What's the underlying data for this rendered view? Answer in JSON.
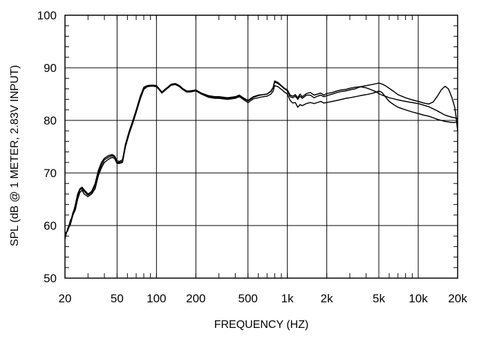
{
  "chart_data": {
    "type": "line",
    "title": "",
    "xlabel": "FREQUENCY  (HZ)",
    "ylabel": "SPL (dB @ 1 METER, 2.83V INPUT)",
    "x_scale": "log",
    "xlim": [
      20,
      20000
    ],
    "ylim": [
      50,
      100
    ],
    "grid": true,
    "legend": "none",
    "line_color": "#000000",
    "x_ticks": [
      {
        "value": 20,
        "label": "20"
      },
      {
        "value": 50,
        "label": "50"
      },
      {
        "value": 100,
        "label": "100"
      },
      {
        "value": 200,
        "label": "200"
      },
      {
        "value": 500,
        "label": "500"
      },
      {
        "value": 1000,
        "label": "1k"
      },
      {
        "value": 2000,
        "label": "2k"
      },
      {
        "value": 5000,
        "label": "5k"
      },
      {
        "value": 10000,
        "label": "10k"
      },
      {
        "value": 20000,
        "label": "20k"
      }
    ],
    "y_ticks": [
      {
        "value": 50,
        "label": "50"
      },
      {
        "value": 60,
        "label": "60"
      },
      {
        "value": 70,
        "label": "70"
      },
      {
        "value": 80,
        "label": "80"
      },
      {
        "value": 90,
        "label": "90"
      },
      {
        "value": 100,
        "label": "100"
      }
    ],
    "series": [
      {
        "x": [
          20,
          21,
          22,
          23,
          24,
          25,
          26,
          27,
          28,
          30,
          32,
          34,
          36,
          38,
          40,
          43,
          46,
          48,
          50,
          52,
          55,
          58,
          62,
          66,
          70,
          75,
          80,
          85,
          90,
          95,
          100,
          105,
          110,
          120,
          130,
          140,
          150,
          160,
          170,
          180,
          190,
          200,
          220,
          250,
          280,
          300,
          350,
          400,
          430,
          460,
          500,
          550,
          600,
          650,
          700,
          750,
          780,
          800,
          850,
          900,
          950,
          1000,
          1050,
          1100,
          1150,
          1200,
          1250,
          1300,
          1400,
          1500,
          1600,
          1700,
          1800,
          1900,
          2000,
          2200,
          2400,
          2600,
          2800,
          3000,
          3300,
          3600,
          4000,
          4400,
          4800,
          5000,
          5300,
          5600,
          6000,
          6500,
          7000,
          8000,
          9000,
          10000,
          11000,
          12000,
          13000,
          14000,
          15000,
          16000,
          17000,
          18000,
          19000,
          19500,
          20000
        ],
        "y": [
          58.5,
          59,
          61,
          62,
          64,
          66,
          67,
          67.3,
          66.8,
          66,
          66.5,
          68,
          70.5,
          72,
          72.8,
          73.3,
          73.5,
          73.2,
          72.3,
          72.2,
          72.5,
          75.5,
          78,
          80,
          82,
          84.5,
          86.3,
          86.6,
          86.7,
          86.7,
          86.6,
          86,
          85.4,
          86.2,
          86.9,
          87,
          86.6,
          86,
          85.6,
          85.6,
          85.7,
          85.8,
          85.2,
          84.7,
          84.5,
          84.5,
          84.3,
          84.5,
          84.8,
          84.3,
          83.8,
          84.5,
          84.8,
          84.9,
          85,
          85.6,
          86.3,
          87.5,
          87.2,
          86.6,
          86.1,
          85.8,
          84.8,
          84.6,
          84.9,
          84.3,
          85,
          84.5,
          85.1,
          85.3,
          84.8,
          85,
          85.2,
          84.8,
          85.1,
          85.3,
          85.6,
          85.8,
          85.9,
          86.1,
          86.3,
          86.4,
          86.2,
          85.8,
          85.4,
          85.1,
          84.8,
          84.6,
          84.3,
          84.1,
          83.9,
          83.6,
          83.4,
          83.2,
          82.9,
          82.6,
          82.2,
          81.8,
          81.4,
          81,
          80.8,
          80.6,
          80.5,
          80.4,
          80.3
        ]
      },
      {
        "x": [
          20,
          21,
          22,
          23,
          24,
          25,
          26,
          27,
          28,
          30,
          32,
          34,
          36,
          38,
          40,
          43,
          46,
          48,
          50,
          52,
          55,
          58,
          62,
          66,
          70,
          75,
          80,
          85,
          90,
          95,
          100,
          105,
          110,
          120,
          130,
          140,
          150,
          160,
          170,
          180,
          190,
          200,
          220,
          250,
          280,
          300,
          350,
          400,
          430,
          460,
          500,
          550,
          600,
          650,
          700,
          750,
          780,
          800,
          850,
          900,
          950,
          1000,
          1050,
          1100,
          1150,
          1200,
          1250,
          1300,
          1400,
          1500,
          1600,
          1700,
          1800,
          1900,
          2000,
          2200,
          2400,
          2600,
          2800,
          3000,
          3300,
          3600,
          4000,
          4400,
          4800,
          5000,
          5300,
          5600,
          6000,
          6500,
          7000,
          8000,
          9000,
          10000,
          11000,
          12000,
          13000,
          14000,
          15000,
          16000,
          17000,
          18000,
          19000,
          19500,
          20000
        ],
        "y": [
          57.5,
          59.5,
          60.5,
          62.5,
          63.5,
          65.5,
          66.8,
          67,
          66.5,
          65.8,
          66.3,
          67.5,
          70,
          71.5,
          72.5,
          73,
          73.3,
          73,
          72,
          72,
          72.2,
          75.3,
          77.8,
          79.8,
          81.8,
          84.3,
          86.1,
          86.5,
          86.6,
          86.6,
          86.5,
          85.9,
          85.3,
          86.1,
          86.8,
          86.9,
          86.5,
          85.9,
          85.5,
          85.5,
          85.6,
          85.7,
          85.1,
          84.6,
          84.4,
          84.4,
          84.2,
          84.4,
          84.7,
          84.2,
          83.7,
          84.4,
          84.7,
          84.9,
          85,
          85.5,
          86.2,
          87.3,
          87,
          86.5,
          86,
          85.6,
          84.5,
          84.3,
          84.6,
          84,
          84.6,
          84.2,
          84.8,
          84.8,
          84.3,
          84.6,
          84.8,
          84.5,
          84.7,
          85,
          85.3,
          85.5,
          85.6,
          85.8,
          86,
          86.4,
          86.6,
          86.8,
          87,
          87.1,
          86.9,
          86.6,
          86.1,
          85.5,
          84.9,
          84.3,
          83.9,
          83.6,
          83.3,
          83.1,
          83.5,
          84.6,
          85.8,
          86.5,
          86,
          84.5,
          82.5,
          80.5,
          78
        ]
      },
      {
        "x": [
          20,
          21,
          22,
          23,
          24,
          25,
          26,
          27,
          28,
          30,
          32,
          34,
          36,
          38,
          40,
          43,
          46,
          48,
          50,
          52,
          55,
          58,
          62,
          66,
          70,
          75,
          80,
          85,
          90,
          95,
          100,
          105,
          110,
          120,
          130,
          140,
          150,
          160,
          170,
          180,
          190,
          200,
          220,
          250,
          280,
          300,
          350,
          400,
          430,
          460,
          500,
          550,
          600,
          650,
          700,
          750,
          780,
          800,
          850,
          900,
          950,
          1000,
          1050,
          1100,
          1150,
          1200,
          1250,
          1300,
          1400,
          1500,
          1600,
          1700,
          1800,
          1900,
          2000,
          2200,
          2400,
          2600,
          2800,
          3000,
          3300,
          3600,
          4000,
          4400,
          4800,
          5000,
          5300,
          5600,
          6000,
          6500,
          7000,
          8000,
          9000,
          10000,
          11000,
          12000,
          13000,
          14000,
          15000,
          16000,
          17000,
          18000,
          19000,
          19500,
          20000
        ],
        "y": [
          58,
          59.2,
          60.2,
          62,
          63,
          65,
          66.3,
          66.7,
          66,
          65.5,
          66,
          67,
          69.5,
          71,
          72,
          72.6,
          73,
          72.7,
          71.8,
          71.8,
          72,
          75,
          77.5,
          79.5,
          81.5,
          84,
          85.9,
          86.4,
          86.5,
          86.5,
          86.4,
          85.8,
          85.2,
          86,
          86.7,
          86.8,
          86.4,
          85.8,
          85.4,
          85.4,
          85.5,
          85.6,
          85,
          84.4,
          84.2,
          84.2,
          84,
          84.2,
          84.5,
          84,
          83.4,
          84.1,
          84.3,
          84.5,
          84.6,
          85,
          85.6,
          86.6,
          86.4,
          85.9,
          85.4,
          85,
          83.8,
          83.3,
          83.4,
          82.5,
          83,
          82.8,
          83.2,
          83.4,
          83.2,
          83.4,
          83.6,
          83.3,
          83.4,
          83.6,
          83.8,
          84,
          84.2,
          84.3,
          84.5,
          84.7,
          84.9,
          85.1,
          85.4,
          85.6,
          85.3,
          84.5,
          83.6,
          83,
          82.5,
          82,
          81.6,
          81.3,
          81,
          80.8,
          80.5,
          80.2,
          80,
          79.8,
          79.7,
          79.6,
          79.6,
          79.7,
          79.8
        ]
      }
    ]
  }
}
